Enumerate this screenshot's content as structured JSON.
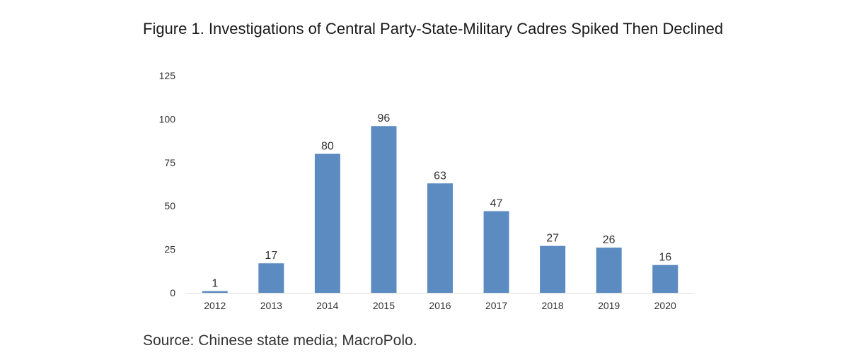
{
  "chart_data": {
    "type": "bar",
    "title": "Figure 1. Investigations of Central Party-State-Military Cadres Spiked Then Declined",
    "categories": [
      "2012",
      "2013",
      "2014",
      "2015",
      "2016",
      "2017",
      "2018",
      "2019",
      "2020"
    ],
    "values": [
      1,
      17,
      80,
      96,
      63,
      47,
      27,
      26,
      16
    ],
    "xlabel": "",
    "ylabel": "",
    "ylim": [
      0,
      125
    ],
    "yticks": [
      0,
      25,
      50,
      75,
      100,
      125
    ],
    "grid": false,
    "legend": "none",
    "bar_color": "#5b8bc0",
    "source": "Source: Chinese state media; MacroPolo."
  }
}
